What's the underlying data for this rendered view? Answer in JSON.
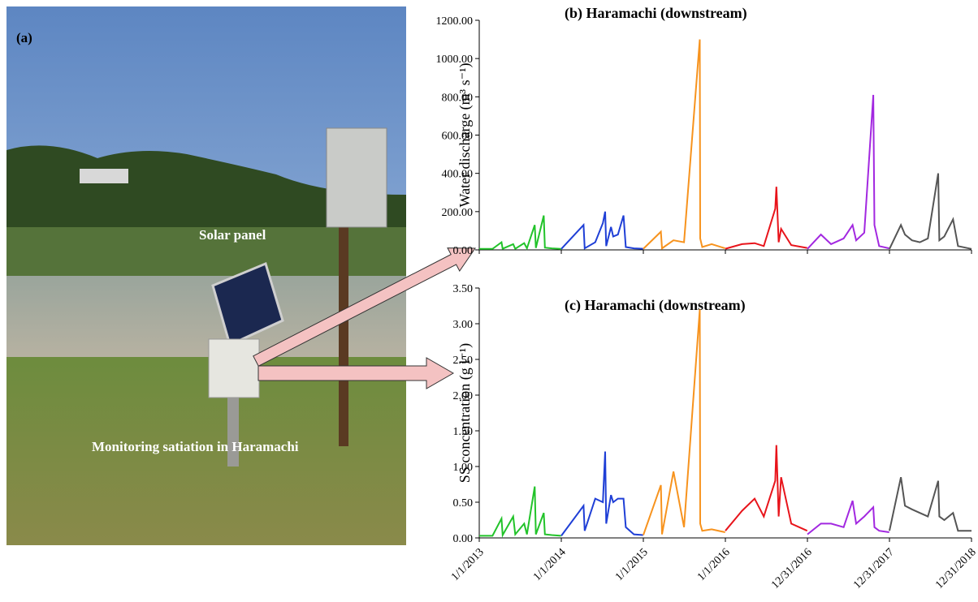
{
  "photo": {
    "label": "(a)",
    "solar_label": "Solar panel",
    "station_label": "Monitoring satiation in Haramachi"
  },
  "chart_data": [
    {
      "type": "line",
      "title": "(b) Haramachi (downstream)",
      "ylabel": "Water discharge (m³ s⁻¹)",
      "ylim": [
        0,
        1200
      ],
      "yticks": [
        {
          "value": 0,
          "label": "0.00"
        },
        {
          "value": 200,
          "label": "200.00"
        },
        {
          "value": 400,
          "label": "400.00"
        },
        {
          "value": 600,
          "label": "600.00"
        },
        {
          "value": 800,
          "label": "800.00"
        },
        {
          "value": 1000,
          "label": "1000.00"
        },
        {
          "value": 1200,
          "label": "1200.00"
        }
      ],
      "xlim": [
        "2013-01-01",
        "2018-12-31"
      ],
      "xticks": [
        "2013-01-01",
        "2014-01-01",
        "2015-01-01",
        "2016-01-01",
        "2016-12-31",
        "2017-12-31",
        "2018-12-31"
      ],
      "series": [
        {
          "color": "#22c32a",
          "x": [
            "2013-01-01",
            "2013-03-01",
            "2013-04-10",
            "2013-04-15",
            "2013-06-01",
            "2013-06-10",
            "2013-07-20",
            "2013-08-01",
            "2013-09-05",
            "2013-09-10",
            "2013-10-15",
            "2013-10-20",
            "2013-11-20",
            "2013-12-31"
          ],
          "values": [
            5,
            5,
            40,
            6,
            30,
            6,
            35,
            8,
            130,
            10,
            180,
            12,
            8,
            5
          ]
        },
        {
          "color": "#1f3fd6",
          "x": [
            "2014-01-01",
            "2014-04-10",
            "2014-04-15",
            "2014-06-01",
            "2014-07-05",
            "2014-07-15",
            "2014-07-20",
            "2014-08-10",
            "2014-08-20",
            "2014-09-10",
            "2014-10-05",
            "2014-10-15",
            "2014-11-20",
            "2014-12-31"
          ],
          "values": [
            5,
            130,
            8,
            40,
            140,
            200,
            20,
            120,
            70,
            80,
            180,
            15,
            8,
            6
          ]
        },
        {
          "color": "#f7931e",
          "x": [
            "2015-01-01",
            "2015-03-20",
            "2015-03-25",
            "2015-05-15",
            "2015-07-01",
            "2015-09-09",
            "2015-09-11",
            "2015-09-20",
            "2015-11-01",
            "2015-12-31"
          ],
          "values": [
            6,
            95,
            8,
            50,
            40,
            1100,
            60,
            15,
            30,
            8
          ]
        },
        {
          "color": "#e8141b",
          "x": [
            "2016-01-01",
            "2016-03-15",
            "2016-05-10",
            "2016-06-20",
            "2016-08-10",
            "2016-08-15",
            "2016-08-25",
            "2016-09-05",
            "2016-10-20",
            "2016-12-30"
          ],
          "values": [
            6,
            30,
            35,
            20,
            215,
            330,
            40,
            110,
            25,
            10
          ]
        },
        {
          "color": "#a228e0",
          "x": [
            "2016-12-31",
            "2017-03-01",
            "2017-04-15",
            "2017-06-10",
            "2017-07-20",
            "2017-08-05",
            "2017-09-10",
            "2017-10-20",
            "2017-10-25",
            "2017-11-15",
            "2017-12-30"
          ],
          "values": [
            5,
            80,
            30,
            60,
            130,
            50,
            90,
            810,
            130,
            20,
            8
          ]
        },
        {
          "color": "#555555",
          "x": [
            "2017-12-31",
            "2018-02-20",
            "2018-03-10",
            "2018-04-10",
            "2018-05-15",
            "2018-06-20",
            "2018-08-05",
            "2018-08-10",
            "2018-09-01",
            "2018-10-10",
            "2018-11-01",
            "2018-12-31"
          ],
          "values": [
            5,
            130,
            80,
            50,
            40,
            60,
            400,
            50,
            70,
            160,
            20,
            5
          ]
        }
      ]
    },
    {
      "type": "line",
      "title": "(c) Haramachi (downstream)",
      "ylabel": "SS concentration (g l⁻¹)",
      "ylim": [
        0,
        3.5
      ],
      "yticks": [
        {
          "value": 0,
          "label": "0.00"
        },
        {
          "value": 0.5,
          "label": "0.50"
        },
        {
          "value": 1,
          "label": "1.00"
        },
        {
          "value": 1.5,
          "label": "1.50"
        },
        {
          "value": 2,
          "label": "2.00"
        },
        {
          "value": 2.5,
          "label": "2.50"
        },
        {
          "value": 3,
          "label": "3.00"
        },
        {
          "value": 3.5,
          "label": "3.50"
        }
      ],
      "xlim": [
        "2013-01-01",
        "2018-12-31"
      ],
      "xticks": [
        {
          "value": "2013-01-01",
          "label": "1/1/2013"
        },
        {
          "value": "2014-01-01",
          "label": "1/1/2014"
        },
        {
          "value": "2015-01-01",
          "label": "1/1/2015"
        },
        {
          "value": "2016-01-01",
          "label": "1/1/2016"
        },
        {
          "value": "2016-12-31",
          "label": "12/31/2016"
        },
        {
          "value": "2017-12-31",
          "label": "12/31/2017"
        },
        {
          "value": "2018-12-31",
          "label": "12/31/2018"
        }
      ],
      "series": [
        {
          "color": "#22c32a",
          "x": [
            "2013-01-01",
            "2013-03-01",
            "2013-04-10",
            "2013-04-15",
            "2013-06-01",
            "2013-06-10",
            "2013-07-20",
            "2013-08-01",
            "2013-09-05",
            "2013-09-10",
            "2013-10-15",
            "2013-10-20",
            "2013-11-20",
            "2013-12-31"
          ],
          "values": [
            0.03,
            0.03,
            0.27,
            0.04,
            0.3,
            0.05,
            0.2,
            0.05,
            0.72,
            0.05,
            0.35,
            0.05,
            0.04,
            0.03
          ]
        },
        {
          "color": "#1f3fd6",
          "x": [
            "2014-01-01",
            "2014-04-10",
            "2014-04-15",
            "2014-06-01",
            "2014-07-05",
            "2014-07-15",
            "2014-07-20",
            "2014-08-10",
            "2014-08-20",
            "2014-09-10",
            "2014-10-05",
            "2014-10-15",
            "2014-11-20",
            "2014-12-31"
          ],
          "values": [
            0.03,
            0.45,
            0.1,
            0.55,
            0.5,
            1.21,
            0.2,
            0.6,
            0.5,
            0.55,
            0.55,
            0.15,
            0.05,
            0.04
          ]
        },
        {
          "color": "#f7931e",
          "x": [
            "2015-01-01",
            "2015-03-20",
            "2015-03-25",
            "2015-05-15",
            "2015-07-01",
            "2015-09-09",
            "2015-09-11",
            "2015-09-20",
            "2015-11-01",
            "2015-12-31"
          ],
          "values": [
            0.04,
            0.74,
            0.05,
            0.93,
            0.15,
            3.2,
            0.2,
            0.1,
            0.12,
            0.08
          ]
        },
        {
          "color": "#e8141b",
          "x": [
            "2016-01-01",
            "2016-03-15",
            "2016-05-10",
            "2016-06-20",
            "2016-08-10",
            "2016-08-15",
            "2016-08-25",
            "2016-09-05",
            "2016-10-20",
            "2016-12-30"
          ],
          "values": [
            0.1,
            0.38,
            0.55,
            0.3,
            0.8,
            1.3,
            0.3,
            0.85,
            0.2,
            0.1
          ]
        },
        {
          "color": "#a228e0",
          "x": [
            "2016-12-31",
            "2017-03-01",
            "2017-04-15",
            "2017-06-10",
            "2017-07-20",
            "2017-08-05",
            "2017-09-10",
            "2017-10-20",
            "2017-10-25",
            "2017-11-15",
            "2017-12-30"
          ],
          "values": [
            0.05,
            0.2,
            0.2,
            0.15,
            0.52,
            0.2,
            0.3,
            0.43,
            0.15,
            0.1,
            0.08
          ]
        },
        {
          "color": "#555555",
          "x": [
            "2017-12-31",
            "2018-02-20",
            "2018-03-10",
            "2018-04-10",
            "2018-05-15",
            "2018-06-20",
            "2018-08-05",
            "2018-08-10",
            "2018-09-01",
            "2018-10-10",
            "2018-11-01",
            "2018-12-31"
          ],
          "values": [
            0.1,
            0.85,
            0.45,
            0.4,
            0.35,
            0.3,
            0.8,
            0.3,
            0.25,
            0.35,
            0.1,
            0.1
          ]
        }
      ]
    }
  ]
}
